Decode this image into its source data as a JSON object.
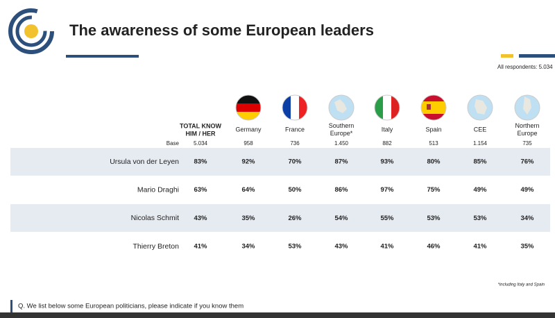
{
  "header": {
    "title": "The awareness of some European leaders",
    "respondents": "All respondents: 5.034"
  },
  "table": {
    "base_label": "Base",
    "columns": [
      {
        "header": [
          "TOTAL KNOW",
          "HIM / HER"
        ],
        "base": "5.034"
      },
      {
        "header": [
          "Germany"
        ],
        "base": "958"
      },
      {
        "header": [
          "France"
        ],
        "base": "736"
      },
      {
        "header": [
          "Southern",
          "Europe*"
        ],
        "base": "1.450"
      },
      {
        "header": [
          "Italy"
        ],
        "base": "882"
      },
      {
        "header": [
          "Spain"
        ],
        "base": "513"
      },
      {
        "header": [
          "CEE"
        ],
        "base": "1.154"
      },
      {
        "header": [
          "Northern",
          "Europe"
        ],
        "base": "735"
      }
    ],
    "rows": [
      {
        "name": "Ursula von der Leyen",
        "values": [
          "83%",
          "92%",
          "70%",
          "87%",
          "93%",
          "80%",
          "85%",
          "76%"
        ]
      },
      {
        "name": "Mario Draghi",
        "values": [
          "63%",
          "64%",
          "50%",
          "86%",
          "97%",
          "75%",
          "49%",
          "49%"
        ]
      },
      {
        "name": "Nicolas Schmit",
        "values": [
          "43%",
          "35%",
          "26%",
          "54%",
          "55%",
          "53%",
          "53%",
          "34%"
        ]
      },
      {
        "name": "Thierry Breton",
        "values": [
          "41%",
          "34%",
          "53%",
          "43%",
          "41%",
          "46%",
          "41%",
          "35%"
        ]
      }
    ]
  },
  "footnote": "*including Italy and Spain",
  "question": "Q. We list below some European politicians, please indicate if you know them"
}
